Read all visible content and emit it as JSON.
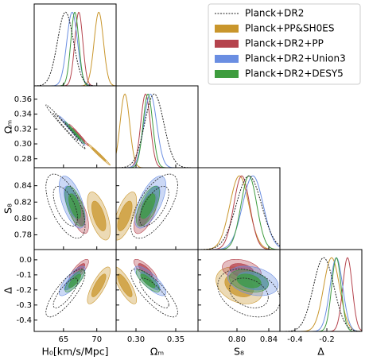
{
  "chart_data": {
    "type": "corner",
    "params": [
      {
        "label": "H₀[km/s/Mpc]",
        "xlim": [
          60.6,
          72.9
        ],
        "xticks": [
          65,
          70
        ]
      },
      {
        "label": "Ωₘ",
        "xlim": [
          0.275,
          0.378
        ],
        "xticks": [
          {
            "value": 0.3,
            "label": "0.30"
          },
          0.35
        ],
        "ylim": [
          0.268,
          0.378
        ],
        "yticks": [
          0.28,
          {
            "value": 0.3,
            "label": "0.30"
          },
          0.32,
          0.34,
          0.36
        ]
      },
      {
        "label": "S₈",
        "xlim": [
          0.751,
          0.854
        ],
        "xticks": [
          {
            "value": 0.8,
            "label": "0.80"
          },
          0.84
        ],
        "ylim": [
          0.762,
          0.862
        ],
        "yticks": [
          0.78,
          {
            "value": 0.8,
            "label": "0.80"
          },
          0.82,
          0.84
        ]
      },
      {
        "label": "Δ",
        "xlim": [
          -0.495,
          0.02
        ],
        "xticks": [
          -0.4,
          -0.2
        ],
        "ylim": [
          -0.475,
          0.068
        ],
        "yticks": [
          -0.4,
          -0.3,
          -0.2,
          -0.1,
          {
            "value": 0,
            "label": "0.0"
          }
        ]
      }
    ],
    "correlation": [
      -0.99,
      -0.6,
      0.65,
      0.8,
      -0.8,
      -0.3
    ],
    "series": [
      {
        "name": "Planck+DR2",
        "color": "#222222",
        "filled": false,
        "mean": [
          65.3,
          0.323,
          0.815,
          -0.22
        ],
        "sigma": [
          1.2,
          0.012,
          0.016,
          0.065
        ]
      },
      {
        "name": "Planck+PP&SH0ES",
        "color": "#c9962c",
        "filled": true,
        "mean": [
          70.3,
          0.286,
          0.803,
          -0.17
        ],
        "sigma": [
          0.7,
          0.006,
          0.012,
          0.05
        ]
      },
      {
        "name": "Planck+DR2+PP",
        "color": "#b5434d",
        "filled": true,
        "mean": [
          67.3,
          0.312,
          0.806,
          -0.07
        ],
        "sigma": [
          0.6,
          0.006,
          0.01,
          0.03
        ]
      },
      {
        "name": "Planck+DR2+Union3",
        "color": "#6a8ee2",
        "filled": true,
        "mean": [
          66.3,
          0.318,
          0.82,
          -0.14
        ],
        "sigma": [
          0.8,
          0.008,
          0.013,
          0.04
        ]
      },
      {
        "name": "Planck+DR2+DESY5",
        "color": "#3e9c3e",
        "filled": true,
        "mean": [
          66.7,
          0.315,
          0.815,
          -0.14
        ],
        "sigma": [
          0.6,
          0.006,
          0.01,
          0.03
        ]
      }
    ]
  }
}
